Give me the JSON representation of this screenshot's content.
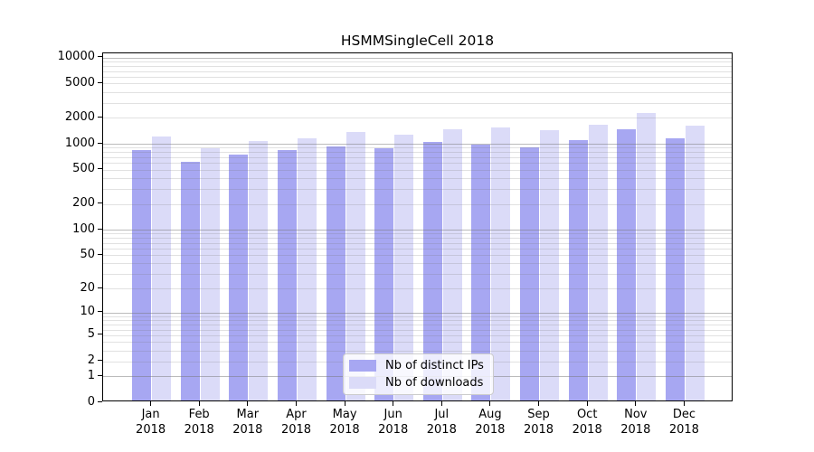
{
  "chart_data": {
    "type": "bar",
    "title": "HSMMSingleCell 2018",
    "categories": [
      "Jan",
      "Feb",
      "Mar",
      "Apr",
      "May",
      "Jun",
      "Jul",
      "Aug",
      "Sep",
      "Oct",
      "Nov",
      "Dec"
    ],
    "year": "2018",
    "series": [
      {
        "name": "Nb of distinct IPs",
        "color": "#a7a7f2",
        "values": [
          800,
          590,
          710,
          810,
          890,
          840,
          990,
          940,
          860,
          1040,
          1420,
          1095
        ]
      },
      {
        "name": "Nb of downloads",
        "color": "#dbdbf8",
        "values": [
          1150,
          845,
          1020,
          1110,
          1320,
          1205,
          1390,
          1460,
          1360,
          1585,
          2170,
          1565
        ]
      }
    ],
    "yscale": "log1p",
    "ylim": [
      0,
      10000
    ],
    "yticks": [
      0,
      1,
      2,
      5,
      10,
      20,
      50,
      100,
      200,
      500,
      1000,
      2000,
      5000,
      10000
    ],
    "grid": true,
    "legend_position": "lower center"
  }
}
